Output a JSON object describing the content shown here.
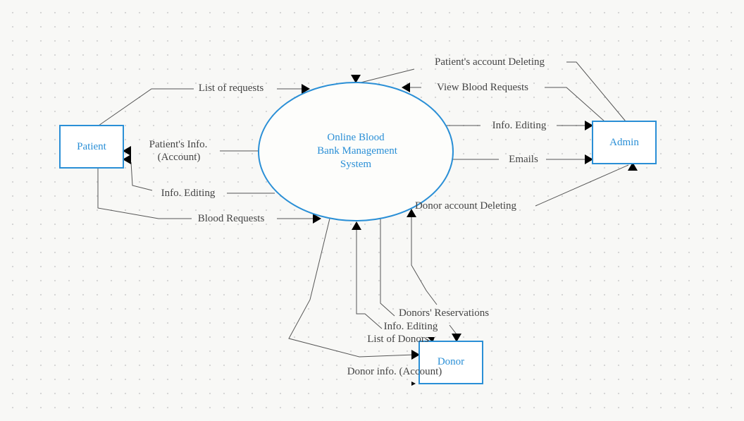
{
  "nodes": {
    "system": {
      "lines": [
        "Online Blood",
        "Bank Management",
        "System"
      ]
    },
    "patient": {
      "label": "Patient"
    },
    "admin": {
      "label": "Admin"
    },
    "donor": {
      "label": "Donor"
    }
  },
  "flows": {
    "list_of_requests": "List of requests",
    "patient_info_1": "Patient's Info.",
    "patient_info_2": "(Account)",
    "patient_info_editing": "Info. Editing",
    "blood_requests": "Blood Requests",
    "patient_account_deleting": "Patient's account Deleting",
    "view_blood_requests": "View Blood Requests",
    "admin_info_editing": "Info. Editing",
    "emails": "Emails",
    "donor_account_deleting": "Donor account Deleting",
    "donors_reservations": "Donors' Reservations",
    "donor_info_editing": "Info. Editing",
    "list_of_donors": "List of Donors",
    "donor_info_account": "Donor info. (Account)"
  },
  "colors": {
    "node_stroke": "#2a8fd6",
    "node_text": "#2a8fd6",
    "edge": "#555555",
    "label": "#444444"
  }
}
